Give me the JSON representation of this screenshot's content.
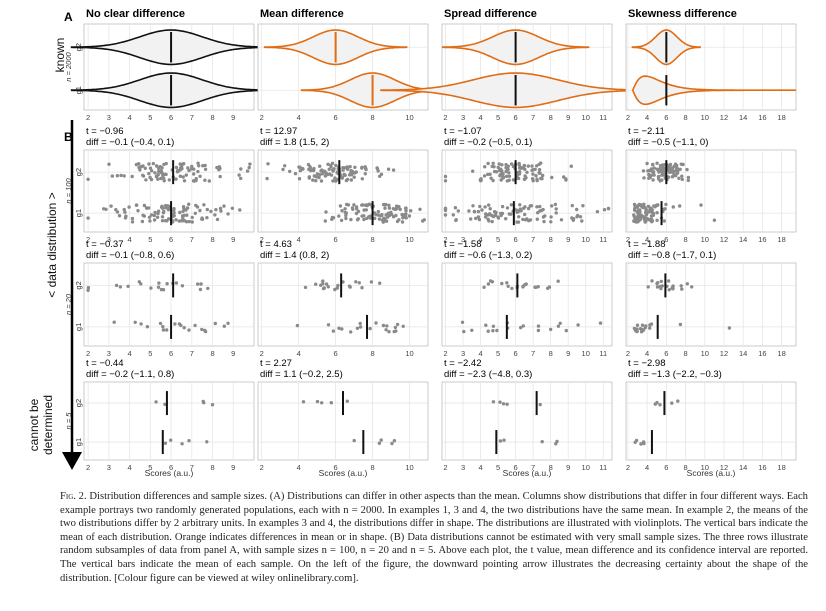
{
  "figure": {
    "side_labels": {
      "known": "known",
      "cannot_be_determined_1": "cannot be",
      "cannot_be_determined_2": "determined",
      "data_distribution": "< data distribution >"
    },
    "panel_letters": {
      "A": "A",
      "B": "B"
    },
    "row_n_labels": [
      "n = 2000",
      "n = 100",
      "n = 20",
      "n = 5"
    ],
    "columns": [
      {
        "title": "No clear difference",
        "xmax": 10,
        "ticks": [
          2,
          3,
          4,
          5,
          6,
          7,
          8,
          9
        ]
      },
      {
        "title": "Mean difference",
        "xmax": 11,
        "ticks": [
          2,
          4,
          6,
          8,
          10
        ]
      },
      {
        "title": "Spread difference",
        "xmax": 11.5,
        "ticks": [
          2,
          3,
          4,
          5,
          6,
          7,
          8,
          9,
          10,
          11
        ]
      },
      {
        "title": "Skewness difference",
        "xmax": 19.5,
        "ticks": [
          2,
          4,
          6,
          8,
          10,
          12,
          14,
          16,
          18
        ]
      }
    ],
    "group_labels": [
      "g2",
      "g1"
    ],
    "x_axis_label": "Scores (a.u.)",
    "colors": {
      "highlight": "#e06c14",
      "normal": "#111111",
      "violin_fill": "#f2f2f2",
      "point": "#8a8a8a",
      "grid": "#e6e6e6"
    },
    "violins": [
      {
        "g2": {
          "mean": 6,
          "sd": 1.5,
          "skew": false,
          "highlight": false
        },
        "g1": {
          "mean": 6,
          "sd": 1.5,
          "skew": false,
          "highlight": false
        }
      },
      {
        "g2": {
          "mean": 6,
          "sd": 1.2,
          "skew": false,
          "highlight": true
        },
        "g1": {
          "mean": 8,
          "sd": 1.2,
          "skew": false,
          "highlight": true
        }
      },
      {
        "g2": {
          "mean": 6,
          "sd": 1.3,
          "skew": false,
          "highlight": true
        },
        "g1": {
          "mean": 6,
          "sd": 2.4,
          "skew": false,
          "highlight": true
        }
      },
      {
        "g2": {
          "mean": 6,
          "sd": 1.1,
          "skew": false,
          "highlight": true
        },
        "g1": {
          "mean": 6,
          "sd": 2.5,
          "skew": true,
          "highlight": true
        }
      }
    ],
    "stats": [
      [
        {
          "t": "t = −0.96",
          "diff": "diff = −0.1 (−0.4, 0.1)"
        },
        {
          "t": "t = 12.97",
          "diff": "diff = 1.8 (1.5, 2)"
        },
        {
          "t": "t = −1.07",
          "diff": "diff = −0.2 (−0.5, 0.1)"
        },
        {
          "t": "t = −2.11",
          "diff": "diff = −0.5 (−1.1, 0)"
        }
      ],
      [
        {
          "t": "t = −0.37",
          "diff": "diff = −0.1 (−0.8, 0.6)"
        },
        {
          "t": "t = 4.63",
          "diff": "diff = 1.4 (0.8, 2)"
        },
        {
          "t": "t = −1.58",
          "diff": "diff = −0.6 (−1.3, 0.2)"
        },
        {
          "t": "t = −1.88",
          "diff": "diff = −0.8 (−1.7, 0.1)"
        }
      ],
      [
        {
          "t": "t = −0.44",
          "diff": "diff = −0.2 (−1.1, 0.8)"
        },
        {
          "t": "t = 2.27",
          "diff": "diff = 1.1 (−0.2, 2.5)"
        },
        {
          "t": "t = −2.42",
          "diff": "diff = −2.3 (−4.8, 0.3)"
        },
        {
          "t": "t = −2.98",
          "diff": "diff = −1.3 (−2.2, −0.3)"
        }
      ]
    ],
    "sample_means": [
      [
        {
          "g2": 6.1,
          "g1": 6.0
        },
        {
          "g2": 6.2,
          "g1": 8.0
        },
        {
          "g2": 6.0,
          "g1": 5.9
        },
        {
          "g2": 6.0,
          "g1": 5.5
        }
      ],
      [
        {
          "g2": 6.1,
          "g1": 6.0
        },
        {
          "g2": 6.3,
          "g1": 7.7
        },
        {
          "g2": 6.1,
          "g1": 5.5
        },
        {
          "g2": 5.9,
          "g1": 5.1
        }
      ],
      [
        {
          "g2": 5.8,
          "g1": 5.6
        },
        {
          "g2": 6.4,
          "g1": 7.5
        },
        {
          "g2": 7.2,
          "g1": 4.9
        },
        {
          "g2": 5.8,
          "g1": 4.5
        }
      ]
    ]
  },
  "caption": {
    "fig_label": "Fig. 2.",
    "text": "Distribution differences and sample sizes. (A) Distributions can differ in other aspects than the mean. Columns show distributions that differ in four different ways. Each example portrays two randomly generated populations, each with n = 2000. In examples 1, 3 and 4, the two distributions have the same mean. In example 2, the means of the two distributions differ by 2 arbitrary units. In examples 3 and 4, the distributions differ in shape. The distributions are illustrated with violinplots. The vertical bars indicate the mean of each distribution. Orange indicates differences in mean or in shape. (B) Data distributions cannot be estimated with very small sample sizes. The three rows illustrate random subsamples of data from panel A, with sample sizes n = 100, n = 20 and n = 5. Above each plot, the t value, mean difference and its confidence interval are reported. The vertical bars indicate the mean of each sample. On the left of the figure, the downward pointing arrow illustrates the decreasing certainty about the shape of the distribution. [Colour figure can be viewed at wiley onlinelibrary.com]."
  }
}
